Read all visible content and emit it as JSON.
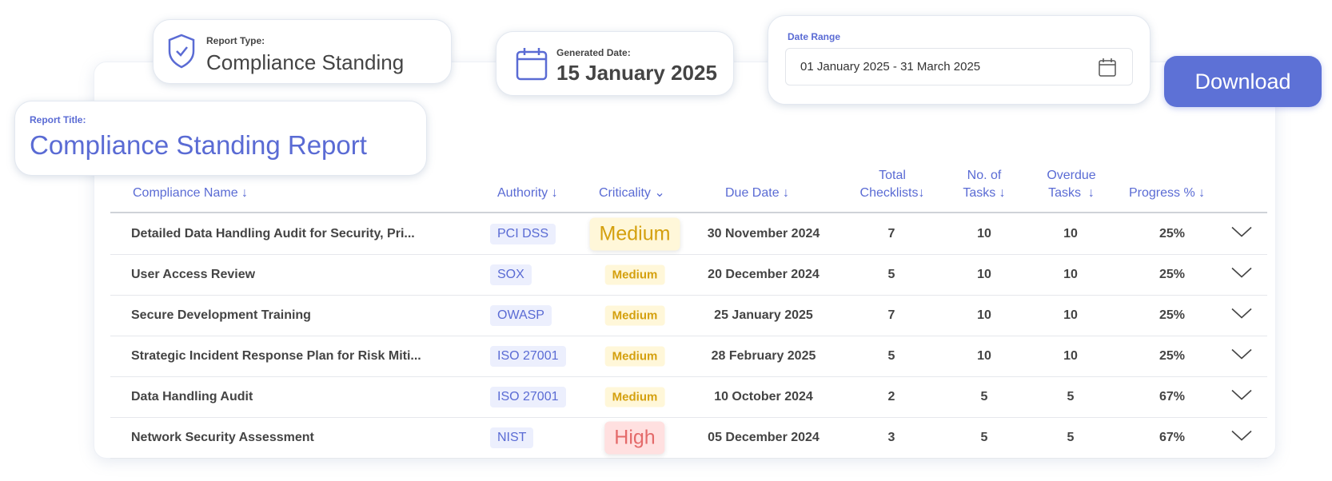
{
  "report_type": {
    "label": "Report Type:",
    "value": "Compliance Standing"
  },
  "generated_date": {
    "label": "Generated Date:",
    "value": "15 January 2025"
  },
  "date_range": {
    "label": "Date Range",
    "value": "01 January 2025 - 31 March 2025"
  },
  "download_label": "Download",
  "report_title": {
    "label": "Report Title:",
    "value": "Compliance Standing Report"
  },
  "colors": {
    "accent": "#5d71d6",
    "medium": "#d4a00e",
    "high": "#e46a6a"
  },
  "table": {
    "headers": {
      "name": "Compliance Name ↓",
      "authority": "Authority ↓",
      "criticality": "Criticality ⌄",
      "due": "Due Date ↓",
      "checklists_1": "Total",
      "checklists_2": "Checklists↓",
      "tasks_1": "No. of",
      "tasks_2": "Tasks ↓",
      "overdue_1": "Overdue",
      "overdue_2": "Tasks  ↓",
      "progress": "Progress % ↓"
    },
    "rows": [
      {
        "name": "Detailed Data Handling Audit for Security, Pri...",
        "authority": "PCI DSS",
        "criticality": "Medium",
        "due": "30 November 2024",
        "checklists": "7",
        "tasks": "10",
        "overdue": "10",
        "progress": "25%"
      },
      {
        "name": "User Access Review",
        "authority": "SOX",
        "criticality": "Medium",
        "due": "20 December 2024",
        "checklists": "5",
        "tasks": "10",
        "overdue": "10",
        "progress": "25%"
      },
      {
        "name": "Secure Development Training",
        "authority": "OWASP",
        "criticality": "Medium",
        "due": "25 January 2025",
        "checklists": "7",
        "tasks": "10",
        "overdue": "10",
        "progress": "25%"
      },
      {
        "name": "Strategic Incident Response Plan for Risk Miti...",
        "authority": "ISO 27001",
        "criticality": "Medium",
        "due": "28 February 2025",
        "checklists": "5",
        "tasks": "10",
        "overdue": "10",
        "progress": "25%"
      },
      {
        "name": "Data Handling Audit",
        "authority": "ISO 27001",
        "criticality": "Medium",
        "due": "10 October 2024",
        "checklists": "2",
        "tasks": "5",
        "overdue": "5",
        "progress": "67%"
      },
      {
        "name": "Network Security Assessment",
        "authority": "NIST",
        "criticality": "High",
        "due": "05 December 2024",
        "checklists": "3",
        "tasks": "5",
        "overdue": "5",
        "progress": "67%"
      }
    ]
  }
}
